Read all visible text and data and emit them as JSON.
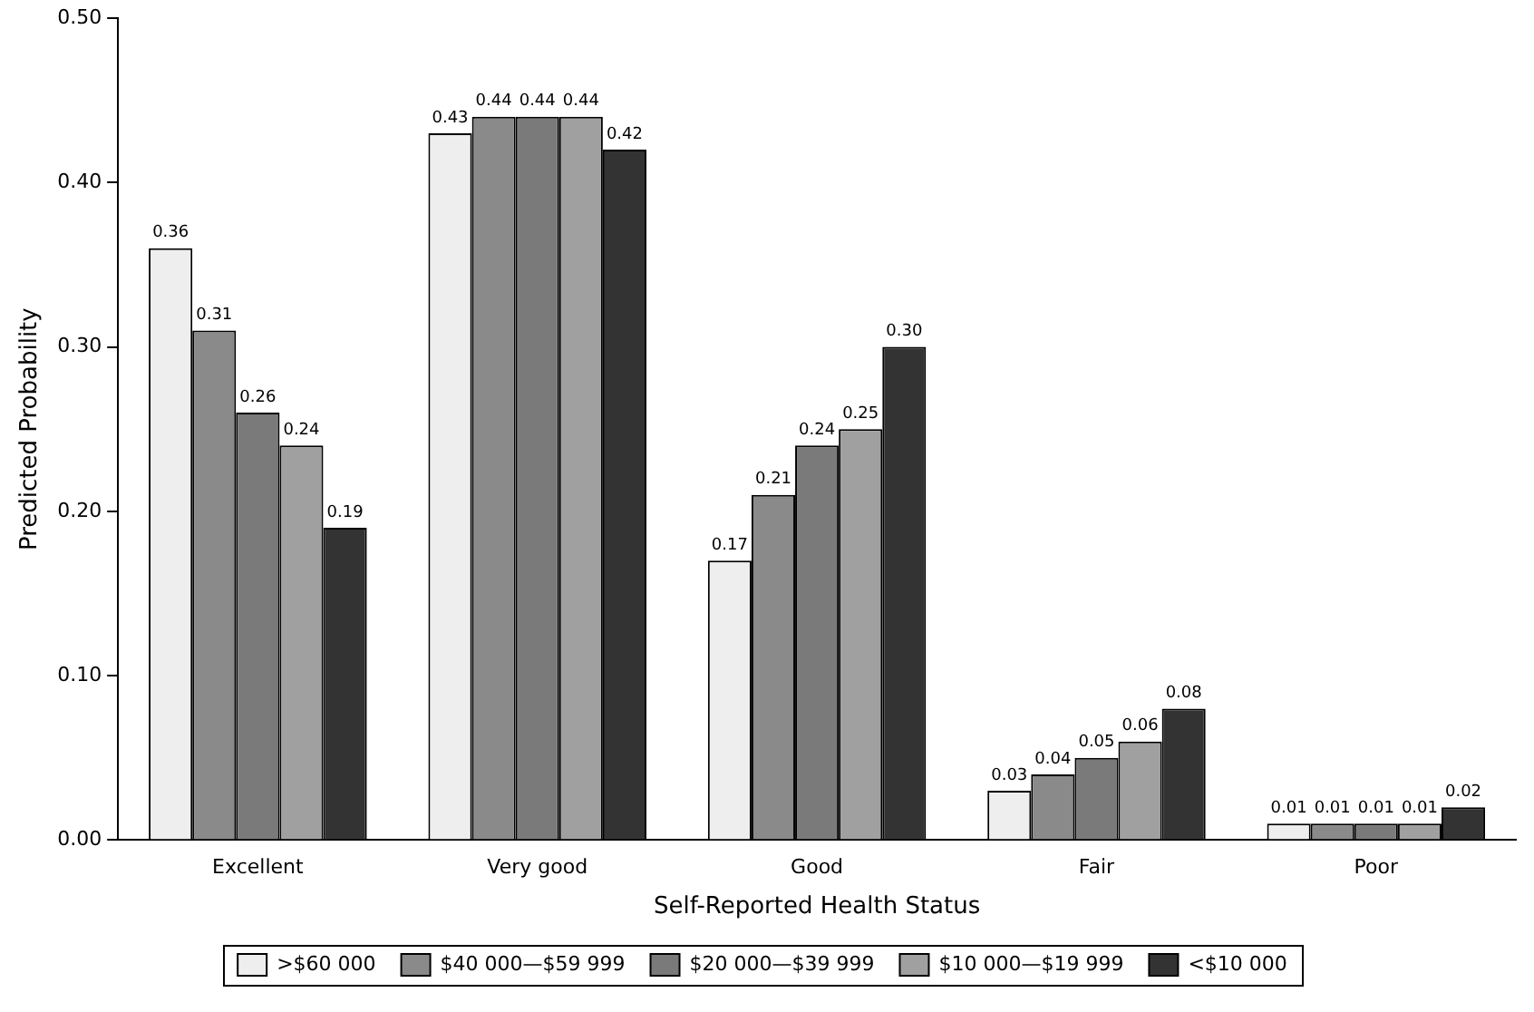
{
  "chart_data": {
    "type": "bar",
    "xlabel": "Self-Reported Health Status",
    "ylabel": "Predicted Probability",
    "categories": [
      "Excellent",
      "Very good",
      "Good",
      "Fair",
      "Poor"
    ],
    "series": [
      {
        "name": ">$60 000",
        "color": "#eeeeee",
        "values": [
          0.36,
          0.43,
          0.17,
          0.03,
          0.01
        ],
        "value_labels": [
          "0.36",
          "0.43",
          "0.17",
          "0.03",
          "0.01"
        ]
      },
      {
        "name": "$40 000—$59 999",
        "color": "#8a8a8a",
        "values": [
          0.31,
          0.44,
          0.21,
          0.04,
          0.01
        ],
        "value_labels": [
          "0.31",
          "0.44",
          "0.21",
          "0.04",
          "0.01"
        ]
      },
      {
        "name": "$20 000—$39 999",
        "color": "#7a7a7a",
        "values": [
          0.26,
          0.44,
          0.24,
          0.05,
          0.01
        ],
        "value_labels": [
          "0.26",
          "0.44",
          "0.24",
          "0.05",
          "0.01"
        ]
      },
      {
        "name": "$10 000—$19 999",
        "color": "#a0a0a0",
        "values": [
          0.24,
          0.44,
          0.25,
          0.06,
          0.01
        ],
        "value_labels": [
          "0.24",
          "0.44",
          "0.25",
          "0.06",
          "0.01"
        ]
      },
      {
        "name": "<$10 000",
        "color": "#333333",
        "values": [
          0.19,
          0.42,
          0.3,
          0.08,
          0.02
        ],
        "value_labels": [
          "0.19",
          "0.42",
          "0.30",
          "0.08",
          "0.02"
        ]
      }
    ],
    "ylim": [
      0,
      0.5
    ],
    "yticks": [
      {
        "value": 0,
        "label": "0.00"
      },
      {
        "value": 0.1,
        "label": "0.10"
      },
      {
        "value": 0.2,
        "label": "0.20"
      },
      {
        "value": 0.3,
        "label": "0.30"
      },
      {
        "value": 0.4,
        "label": "0.40"
      },
      {
        "value": 0.5,
        "label": "0.50"
      }
    ],
    "grid": false,
    "legend": "bottom"
  }
}
